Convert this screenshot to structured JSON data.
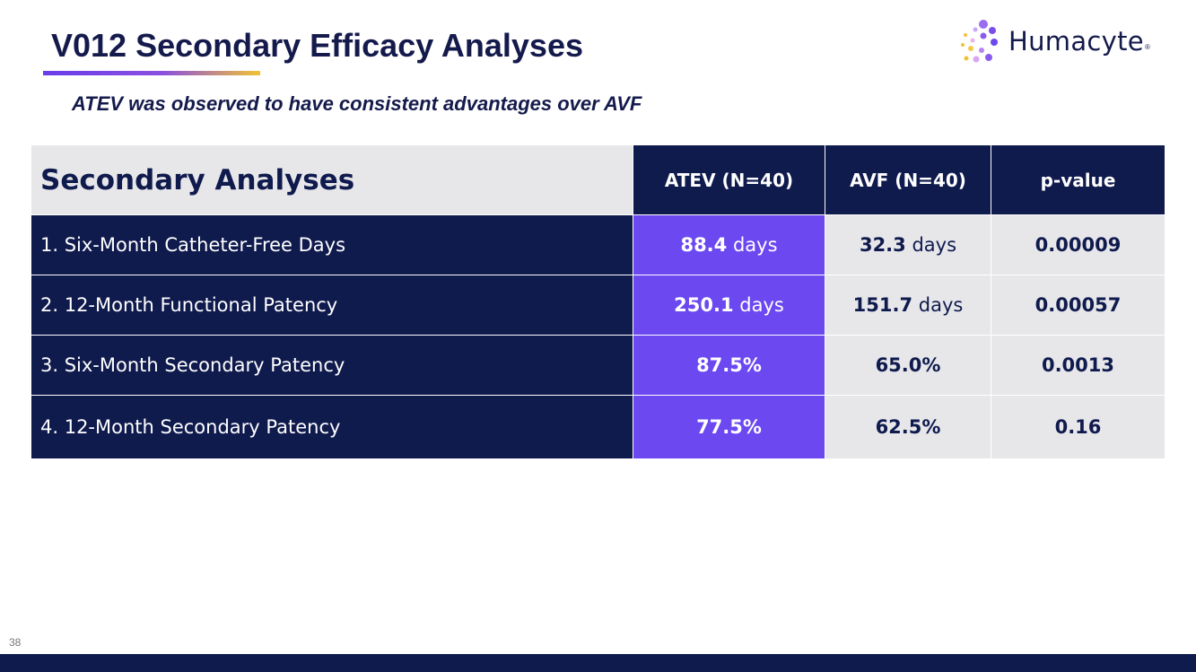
{
  "slide": {
    "title": "V012 Secondary Efficacy Analyses",
    "subtitle": "ATEV was observed to have consistent advantages over AVF",
    "page_number": "38"
  },
  "logo": {
    "text": "Humacyte",
    "registered_mark": "®",
    "icon": "dot-cluster-icon"
  },
  "table": {
    "header": {
      "label": "Secondary Analyses",
      "col_atev": "ATEV (N=40)",
      "col_avf": "AVF (N=40)",
      "col_p": "p-value"
    },
    "rows": [
      {
        "label": "1. Six-Month Catheter-Free Days",
        "atev_value": "88.4",
        "atev_unit": " days",
        "avf_value": "32.3",
        "avf_unit": " days",
        "p_value": "0.00009"
      },
      {
        "label": "2. 12-Month Functional Patency",
        "atev_value": "250.1",
        "atev_unit": " days",
        "avf_value": "151.7",
        "avf_unit": " days",
        "p_value": "0.00057"
      },
      {
        "label": "3. Six-Month Secondary Patency",
        "atev_value": "87.5%",
        "atev_unit": "",
        "avf_value": "65.0%",
        "avf_unit": "",
        "p_value": "0.0013"
      },
      {
        "label": "4. 12-Month Secondary Patency",
        "atev_value": "77.5%",
        "atev_unit": "",
        "avf_value": "62.5%",
        "avf_unit": "",
        "p_value": "0.16"
      }
    ]
  },
  "colors": {
    "navy": "#0f1a4d",
    "purple": "#6b48f0",
    "gray": "#e7e7ea",
    "accent_gold": "#f2c232"
  }
}
